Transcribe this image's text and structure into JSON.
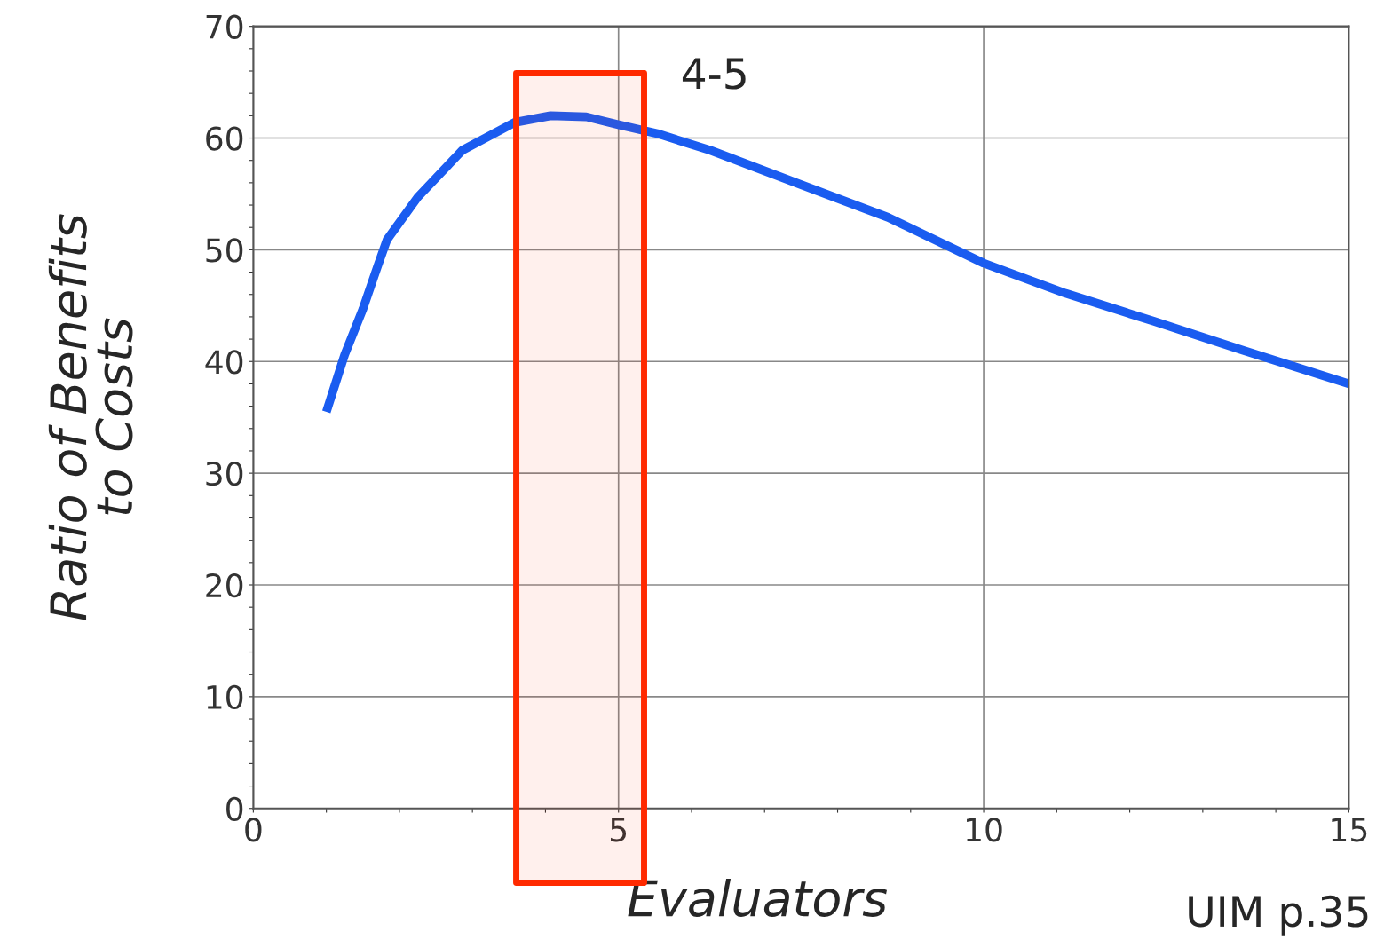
{
  "chart_data": {
    "type": "line",
    "xlabel": "Evaluators",
    "ylabel": "Ratio of Benefits\nto Costs",
    "x": [
      1,
      1.25,
      1.5,
      1.7,
      1.83,
      2.25,
      2.86,
      3.58,
      4.07,
      4.56,
      5,
      5.53,
      6.26,
      7.47,
      8.69,
      10,
      11.12,
      12.33,
      13.55,
      15
    ],
    "series": [
      {
        "color": "#1a5cf0",
        "values": [
          35.5,
          40.6,
          44.7,
          48.5,
          50.9,
          54.7,
          58.9,
          61.4,
          62,
          61.9,
          61.2,
          60.4,
          58.9,
          55.9,
          52.9,
          48.8,
          46.1,
          43.6,
          41.0,
          38.0
        ]
      }
    ],
    "xlim": [
      0,
      15
    ],
    "ylim": [
      0,
      70
    ],
    "xticks": [
      0,
      {
        "value": 1,
        "label": null
      },
      {
        "value": 2,
        "label": null
      },
      {
        "value": 3,
        "label": null
      },
      {
        "value": 4,
        "label": null
      },
      5,
      {
        "value": 6,
        "label": null
      },
      {
        "value": 7,
        "label": null
      },
      {
        "value": 8,
        "label": null
      },
      {
        "value": 9,
        "label": null
      },
      10,
      {
        "value": 11,
        "label": null
      },
      {
        "value": 12,
        "label": null
      },
      {
        "value": 13,
        "label": null
      },
      {
        "value": 14,
        "label": null
      },
      15
    ],
    "yticks": [
      0,
      {
        "value": 2,
        "label": null
      },
      {
        "value": 4,
        "label": null
      },
      {
        "value": 6,
        "label": null
      },
      {
        "value": 8,
        "label": null
      },
      10,
      {
        "value": 12,
        "label": null
      },
      {
        "value": 14,
        "label": null
      },
      {
        "value": 16,
        "label": null
      },
      {
        "value": 18,
        "label": null
      },
      20,
      {
        "value": 22,
        "label": null
      },
      {
        "value": 24,
        "label": null
      },
      {
        "value": 26,
        "label": null
      },
      {
        "value": 28,
        "label": null
      },
      30,
      {
        "value": 32,
        "label": null
      },
      {
        "value": 34,
        "label": null
      },
      {
        "value": 36,
        "label": null
      },
      {
        "value": 38,
        "label": null
      },
      40,
      {
        "value": 42,
        "label": null
      },
      {
        "value": 44,
        "label": null
      },
      {
        "value": 46,
        "label": null
      },
      {
        "value": 48,
        "label": null
      },
      50,
      {
        "value": 52,
        "label": null
      },
      {
        "value": 54,
        "label": null
      },
      {
        "value": 56,
        "label": null
      },
      {
        "value": 58,
        "label": null
      },
      60,
      {
        "value": 62,
        "label": null
      },
      {
        "value": 64,
        "label": null
      },
      {
        "value": 66,
        "label": null
      },
      {
        "value": 68,
        "label": null
      },
      70
    ],
    "grid": true,
    "marker": "none",
    "line_style": "solid",
    "bands": [
      {
        "axis": "x",
        "from": 3.6,
        "to": 5.35,
        "label": "4-5",
        "color": "#ff2a00"
      }
    ],
    "annotations": [
      "UIM p.35"
    ]
  }
}
